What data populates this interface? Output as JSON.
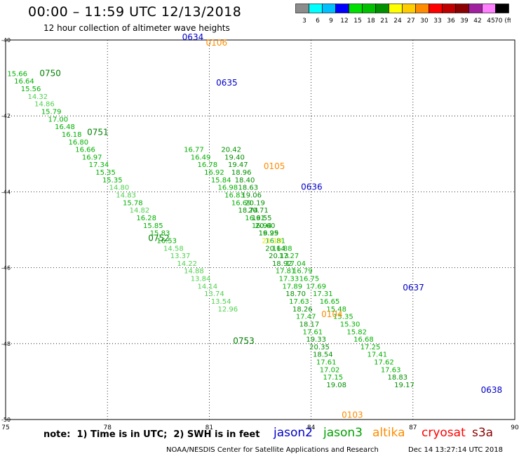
{
  "header": {
    "title": "00:00 – 11:59 UTC 12/13/2018",
    "subtitle": "12 hour collection of altimeter wave heights"
  },
  "scale": {
    "colors": [
      "#8c8c8c",
      "#00ffff",
      "#00bfff",
      "#0000ff",
      "#00e000",
      "#00c000",
      "#009000",
      "#ffff00",
      "#ffcc00",
      "#ff8c00",
      "#ff0000",
      "#c00000",
      "#8b0000",
      "#a020a0",
      "#ff80ff",
      "#000000"
    ],
    "labels": [
      "3",
      "6",
      "9",
      "12",
      "15",
      "18",
      "21",
      "24",
      "27",
      "30",
      "33",
      "36",
      "39",
      "42",
      "45",
      "70 (ft)"
    ]
  },
  "footer": {
    "note": "note:  1) Time is in UTC;  2) SWH is in feet",
    "satellites": [
      {
        "name": "jason2",
        "color": "#0000c8"
      },
      {
        "name": "jason3",
        "color": "#00a000"
      },
      {
        "name": "altika",
        "color": "#ff8c00"
      },
      {
        "name": "cryosat",
        "color": "#ff0000"
      },
      {
        "name": "s3a",
        "color": "#8b0000"
      }
    ],
    "credit": "NOAA/NESDIS Center for Satellite Applications and Research",
    "timestamp": "Dec 14 13:27:14 UTC 2018"
  },
  "chart_data": {
    "type": "scatter",
    "units": "ft",
    "xlim": [
      75,
      90
    ],
    "ylim": [
      -50,
      -40
    ],
    "xticks": [
      "75",
      "78",
      "81",
      "84",
      "87",
      "90"
    ],
    "yticks": [
      "-40",
      "-42",
      "-44",
      "-46",
      "-48",
      "-50"
    ],
    "grid": true,
    "time_labels": [
      {
        "text": "0750",
        "lon": 76.0,
        "lat": -40.95,
        "color": "#008000"
      },
      {
        "text": "0751",
        "lon": 77.4,
        "lat": -42.5,
        "color": "#008000"
      },
      {
        "text": "0752",
        "lon": 79.2,
        "lat": -45.3,
        "color": "#008000"
      },
      {
        "text": "0753",
        "lon": 81.7,
        "lat": -48.0,
        "color": "#008000"
      },
      {
        "text": "0634",
        "lon": 80.2,
        "lat": -40.0,
        "color": "#0000c8"
      },
      {
        "text": "0635",
        "lon": 81.2,
        "lat": -41.2,
        "color": "#0000c8"
      },
      {
        "text": "0636",
        "lon": 83.7,
        "lat": -43.95,
        "color": "#0000c8"
      },
      {
        "text": "0637",
        "lon": 86.7,
        "lat": -46.6,
        "color": "#0000c8"
      },
      {
        "text": "0638",
        "lon": 89.0,
        "lat": -49.3,
        "color": "#0000c8"
      },
      {
        "text": "0106",
        "lon": 80.9,
        "lat": -40.15,
        "color": "#ff8c00"
      },
      {
        "text": "0105",
        "lon": 82.6,
        "lat": -43.4,
        "color": "#ff8c00"
      },
      {
        "text": "0104",
        "lon": 84.3,
        "lat": -47.3,
        "color": "#ff8c00"
      },
      {
        "text": "0103",
        "lon": 84.9,
        "lat": -49.95,
        "color": "#ff8c00"
      }
    ],
    "series": [
      {
        "name": "0750",
        "color": "#00c000",
        "lon": [
          75.05,
          75.25,
          75.45,
          75.65,
          75.85,
          76.05,
          76.25,
          76.45,
          76.65,
          76.85,
          77.05,
          77.25,
          77.45,
          77.65,
          77.85,
          78.05,
          78.25,
          78.45,
          78.65,
          78.85,
          79.05,
          79.25,
          79.45,
          79.65,
          79.85,
          80.05,
          80.25,
          80.45,
          80.65,
          80.85,
          81.05,
          81.25
        ],
        "lat": [
          -40.95,
          -41.15,
          -41.35,
          -41.55,
          -41.75,
          -41.95,
          -42.15,
          -42.35,
          -42.55,
          -42.75,
          -42.95,
          -43.15,
          -43.35,
          -43.55,
          -43.75,
          -43.95,
          -44.15,
          -44.35,
          -44.55,
          -44.75,
          -44.95,
          -45.15,
          -45.35,
          -45.55,
          -45.75,
          -45.95,
          -46.15,
          -46.35,
          -46.55,
          -46.75,
          -46.95,
          -47.15
        ],
        "values": [
          15.66,
          16.64,
          15.56,
          14.32,
          14.86,
          15.79,
          17.0,
          16.48,
          16.18,
          16.8,
          16.66,
          16.97,
          17.34,
          15.35,
          15.35,
          14.8,
          14.83,
          15.78,
          14.82,
          16.28,
          15.85,
          15.83,
          16.53,
          14.58,
          13.37,
          14.22,
          14.88,
          13.84,
          14.14,
          13.74,
          13.54,
          12.96
        ]
      },
      {
        "name": "0634",
        "color": "#00c000",
        "lon": [
          80.25,
          80.45,
          80.65,
          80.85,
          81.05,
          81.25,
          81.45,
          81.65,
          81.85,
          82.05,
          82.25,
          82.45,
          82.65,
          82.85,
          83.05,
          83.25,
          83.45,
          83.65,
          83.85,
          84.05,
          84.25,
          84.45,
          84.65,
          84.85,
          85.05,
          85.25,
          85.45,
          85.65,
          85.85,
          86.05,
          86.25,
          86.45
        ],
        "lat": [
          -42.95,
          -43.15,
          -43.35,
          -43.55,
          -43.75,
          -43.95,
          -44.15,
          -44.35,
          -44.55,
          -44.75,
          -44.95,
          -45.15,
          -45.35,
          -45.55,
          -45.75,
          -45.95,
          -46.15,
          -46.35,
          -46.55,
          -46.75,
          -46.95,
          -47.15,
          -47.35,
          -47.55,
          -47.75,
          -47.95,
          -48.15,
          -48.35,
          -48.55,
          -48.75,
          -48.95,
          -49.15
        ],
        "values": [
          16.77,
          16.49,
          16.78,
          16.92,
          15.84,
          16.98,
          16.83,
          16.69,
          18.74,
          16.61,
          16.94,
          16.29,
          16.81,
          16.88,
          17.27,
          17.04,
          16.79,
          16.75,
          17.69,
          17.31,
          16.65,
          15.48,
          15.35,
          15.3,
          15.82,
          16.68,
          17.25,
          17.41,
          17.62,
          17.63,
          18.83,
          19.17
        ]
      },
      {
        "name": "0104",
        "color": "#00c000",
        "lon": [
          81.35,
          81.45,
          81.55,
          81.65,
          81.75,
          81.85,
          81.95,
          82.05,
          82.15,
          82.25,
          82.35,
          82.45,
          82.55,
          82.65,
          82.75,
          82.85,
          82.95,
          83.05,
          83.15,
          83.25,
          83.35,
          83.45,
          83.55,
          83.65,
          83.75,
          83.85,
          83.95,
          84.05,
          84.15,
          84.25,
          84.35,
          84.45
        ],
        "lat": [
          -42.95,
          -43.15,
          -43.35,
          -43.55,
          -43.75,
          -43.95,
          -44.15,
          -44.35,
          -44.55,
          -44.75,
          -44.95,
          -45.15,
          -45.35,
          -45.55,
          -45.75,
          -45.95,
          -46.15,
          -46.35,
          -46.55,
          -46.75,
          -46.95,
          -47.15,
          -47.35,
          -47.55,
          -47.75,
          -47.95,
          -48.15,
          -48.35,
          -48.55,
          -48.75,
          -48.95,
          -49.15
        ],
        "values": [
          20.42,
          19.4,
          19.47,
          18.96,
          18.4,
          18.63,
          19.06,
          20.19,
          20.71,
          19.55,
          20.6,
          19.95,
          21.19,
          20.14,
          20.13,
          18.92,
          17.81,
          17.33,
          17.89,
          18.7,
          17.63,
          18.26,
          17.47,
          18.17,
          17.61,
          19.33,
          20.35,
          18.54,
          17.61,
          17.02,
          17.15,
          19.08
        ]
      }
    ]
  }
}
